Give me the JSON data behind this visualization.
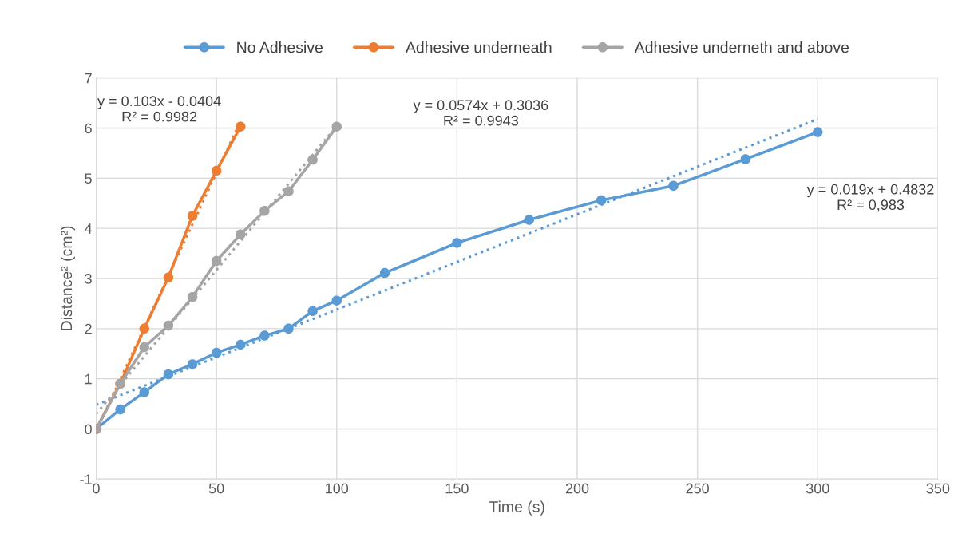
{
  "chart_data": {
    "type": "line",
    "xlabel": "Time (s)",
    "ylabel": "Distance² (cm²)",
    "xlim": [
      0,
      350
    ],
    "xticks": [
      0,
      50,
      100,
      150,
      200,
      250,
      300,
      350
    ],
    "ylim": [
      -1,
      7
    ],
    "yticks": [
      -1,
      0,
      1,
      2,
      3,
      4,
      5,
      6,
      7
    ],
    "grid": true,
    "legend": "top",
    "marker": "circle",
    "line_style": "solid",
    "series": [
      {
        "name": "No Adhesive",
        "color": "#5b9bd5",
        "x": [
          0,
          10,
          20,
          30,
          40,
          50,
          60,
          70,
          80,
          90,
          100,
          120,
          150,
          180,
          210,
          240,
          270,
          300
        ],
        "values": [
          0,
          0.39,
          0.73,
          1.09,
          1.29,
          1.52,
          1.68,
          1.86,
          2.0,
          2.35,
          2.56,
          3.11,
          3.71,
          4.17,
          4.56,
          4.85,
          5.38,
          5.92
        ]
      },
      {
        "name": "Adhesive underneath",
        "color": "#ed7d31",
        "x": [
          0,
          10,
          20,
          30,
          40,
          50,
          60
        ],
        "values": [
          0,
          0.9,
          2.0,
          3.02,
          4.25,
          5.15,
          6.03
        ]
      },
      {
        "name": "Adhesive underneth and above",
        "color": "#a5a5a5",
        "x": [
          0,
          10,
          20,
          30,
          40,
          50,
          60,
          70,
          80,
          90,
          100
        ],
        "values": [
          0,
          0.9,
          1.63,
          2.06,
          2.63,
          3.35,
          3.88,
          4.35,
          4.74,
          5.37,
          6.03
        ]
      },
      {
        "type": "line",
        "color": "#5b9bd5",
        "marker": "none",
        "line_style": "dotted",
        "x": [
          0,
          300
        ],
        "values": [
          0.48,
          6.18
        ]
      },
      {
        "type": "line",
        "color": "#ed7d31",
        "marker": "none",
        "line_style": "dotted",
        "x": [
          0,
          60
        ],
        "values": [
          -0.04,
          6.14
        ]
      },
      {
        "type": "line",
        "color": "#a5a5a5",
        "marker": "none",
        "line_style": "dotted",
        "x": [
          0,
          100
        ],
        "values": [
          0.3,
          6.04
        ]
      }
    ],
    "annotations": [
      "y = 0.103x - 0.0404\nR² = 0.9982",
      "y = 0.0574x + 0.3036\nR² = 0.9943",
      "y = 0.019x + 0.4832\nR² = 0,983"
    ]
  }
}
